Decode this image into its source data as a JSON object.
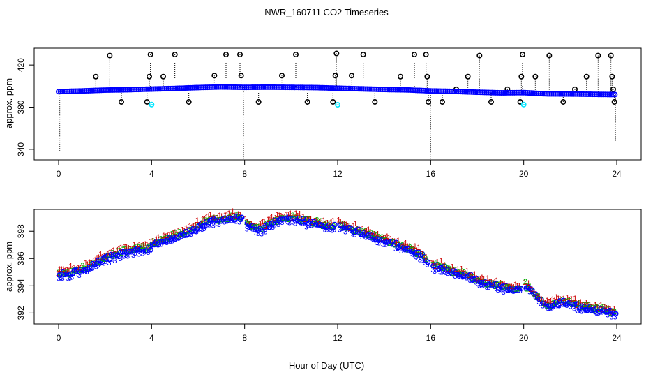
{
  "title": "NWR_160711  CO2 Timeseries",
  "xlabel": "Hour of Day (UTC)",
  "colors": {
    "axis": "#000000",
    "primary": "#0000ff",
    "flagged": "#00e5ff",
    "series_1": "#cc0000",
    "series_2": "#00b000",
    "series_3": "#0000ff",
    "outlier": "#000000"
  },
  "chart_data": [
    {
      "type": "scatter",
      "name": "top-panel",
      "ylabel": "approx. ppm",
      "xlim": [
        0,
        24
      ],
      "ylim": [
        330,
        436
      ],
      "xticks": [
        0,
        4,
        8,
        12,
        16,
        20,
        24
      ],
      "yticks": [
        340,
        380,
        420
      ],
      "xtick_labels": [
        "0",
        "4",
        "8",
        "12",
        "16",
        "20",
        "24"
      ],
      "ytick_labels": [
        "340",
        "380",
        "420"
      ],
      "main_series": {
        "name": "co2",
        "x": [
          0,
          1,
          2,
          3,
          4,
          5,
          6,
          7,
          8,
          9,
          10,
          11,
          12,
          13,
          14,
          15,
          16,
          17,
          18,
          19,
          20,
          21,
          22,
          23,
          23.8
        ],
        "y": [
          394.8,
          395.4,
          396.2,
          396.6,
          397.2,
          397.8,
          398.6,
          399.2,
          398.8,
          399.0,
          398.8,
          398.6,
          398.0,
          397.4,
          396.8,
          396.4,
          395.4,
          395.0,
          394.2,
          393.6,
          393.8,
          392.6,
          392.5,
          392.2,
          392.0
        ]
      },
      "outlier_points": {
        "x": [
          1.6,
          2.2,
          2.7,
          3.8,
          3.9,
          3.95,
          4.5,
          5.0,
          5.6,
          6.7,
          7.2,
          7.8,
          7.85,
          8.6,
          9.6,
          10.2,
          10.7,
          11.8,
          11.9,
          11.95,
          12.6,
          13.1,
          13.6,
          14.7,
          15.3,
          15.8,
          15.85,
          15.9,
          16.5,
          17.1,
          17.6,
          18.1,
          18.6,
          19.3,
          19.85,
          19.9,
          19.95,
          20.5,
          21.1,
          21.7,
          22.2,
          22.7,
          23.2,
          23.75,
          23.8,
          23.85,
          23.9
        ]
      },
      "outlier_values": [
        409,
        429,
        385,
        385,
        409,
        430,
        409,
        430,
        385,
        410,
        430,
        430,
        410,
        385,
        410,
        430,
        385,
        385,
        410,
        431,
        410,
        430,
        385,
        409,
        430,
        430,
        409,
        385,
        385,
        397,
        409,
        429,
        385,
        397,
        385,
        409,
        430,
        409,
        429,
        385,
        397,
        409,
        429,
        429,
        409,
        397,
        385
      ],
      "flagged_points": {
        "x": [
          4.0,
          12.0,
          20.0
        ],
        "y": [
          382.5,
          382.3,
          382.5
        ]
      },
      "drop_lines": [
        {
          "x": 0.05,
          "y_from": 394.8,
          "y_to": 338
        },
        {
          "x": 7.95,
          "y_from": 398.8,
          "y_to": 331
        },
        {
          "x": 16.0,
          "y_from": 395.4,
          "y_to": 331
        },
        {
          "x": 23.95,
          "y_from": 392.0,
          "y_to": 348
        }
      ]
    },
    {
      "type": "scatter",
      "name": "bottom-panel",
      "ylabel": "approx. ppm",
      "xlim": [
        0,
        24
      ],
      "ylim": [
        391.2,
        399.6
      ],
      "xticks": [
        0,
        4,
        8,
        12,
        16,
        20,
        24
      ],
      "yticks": [
        392,
        394,
        396,
        398
      ],
      "xtick_labels": [
        "0",
        "4",
        "8",
        "12",
        "16",
        "20",
        "24"
      ],
      "ytick_labels": [
        "392",
        "394",
        "396",
        "398"
      ],
      "series": [
        {
          "name": "1",
          "marker": "1",
          "color_key": "series_1",
          "offset": 0.25
        },
        {
          "name": "2",
          "marker": "2",
          "color_key": "series_2",
          "offset": 0.1
        },
        {
          "name": "3",
          "marker": "3",
          "color_key": "series_3",
          "offset": -0.15
        },
        {
          "name": "o",
          "marker": "o",
          "color_key": "series_3",
          "offset": 0.0
        }
      ],
      "trend": {
        "x": [
          0,
          0.5,
          1,
          1.5,
          2,
          2.5,
          3,
          3.5,
          3.9,
          4.0,
          4.5,
          5,
          5.5,
          6,
          6.5,
          7,
          7.5,
          7.9,
          8.0,
          8.3,
          8.6,
          8.9,
          9.2,
          9.5,
          10,
          10.5,
          11,
          11.5,
          11.9,
          12.0,
          12.5,
          13,
          13.5,
          14,
          14.5,
          15,
          15.5,
          15.9,
          16.0,
          16.5,
          17,
          17.5,
          18,
          18.5,
          19,
          19.5,
          19.9,
          20.0,
          20.3,
          20.6,
          20.9,
          21.2,
          21.5,
          22,
          22.5,
          23,
          23.5,
          23.9
        ],
        "y": [
          394.8,
          394.9,
          395.2,
          395.6,
          396.0,
          396.3,
          396.5,
          396.7,
          396.7,
          397.0,
          397.3,
          397.6,
          397.9,
          398.3,
          398.7,
          398.8,
          399.0,
          399.0,
          398.6,
          398.3,
          398.1,
          398.3,
          398.6,
          398.8,
          398.9,
          398.8,
          398.6,
          398.4,
          398.3,
          398.4,
          398.2,
          397.9,
          397.6,
          397.3,
          397.0,
          396.7,
          396.3,
          395.8,
          395.5,
          395.3,
          395.0,
          394.8,
          394.4,
          394.1,
          393.9,
          393.7,
          393.9,
          394.1,
          393.7,
          393.2,
          392.6,
          392.5,
          392.8,
          392.7,
          392.4,
          392.3,
          392.2,
          392.0
        ]
      }
    }
  ]
}
